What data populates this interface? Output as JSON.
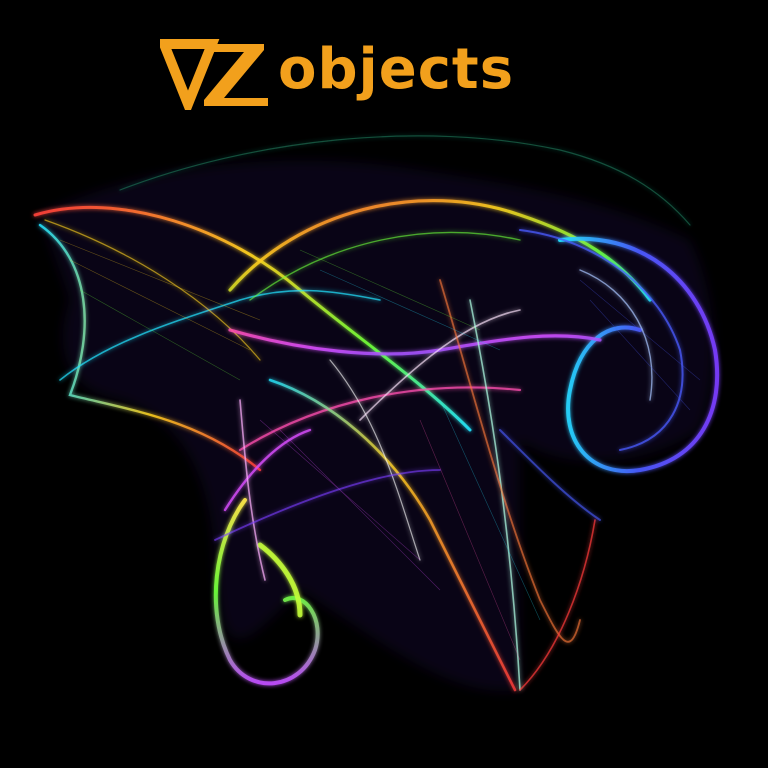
{
  "logo": {
    "wordmark": "objects",
    "mark_icon": "vz-monogram-icon"
  },
  "artwork": {
    "subject": "ribbon-swirl-artwork",
    "background": "#000000"
  },
  "colors": {
    "brand": "#f2a01c",
    "background": "#000000",
    "ribbon_palette": [
      "#ff3b3b",
      "#ffd21f",
      "#6cff3a",
      "#22e3ff",
      "#4a5bff",
      "#d94dff",
      "#ff4fb0"
    ]
  }
}
